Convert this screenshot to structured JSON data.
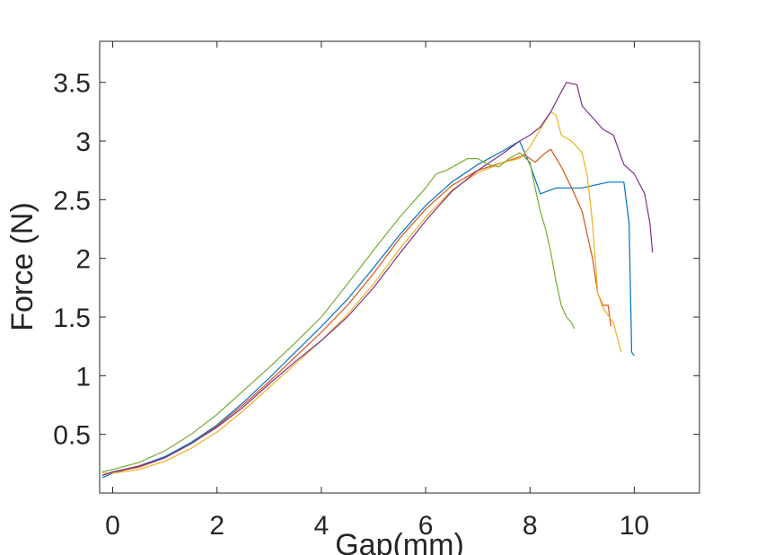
{
  "chart_data": {
    "type": "line",
    "xlabel": "Gap(mm)",
    "ylabel": "Force (N)",
    "xlim": [
      -0.25,
      11.25
    ],
    "ylim": [
      0.0,
      3.85
    ],
    "xticks": [
      0,
      2,
      4,
      6,
      8,
      10
    ],
    "xtick_labels": [
      "0",
      "2",
      "4",
      "6",
      "8",
      "10"
    ],
    "yticks": [
      0.5,
      1,
      1.5,
      2,
      2.5,
      3,
      3.5
    ],
    "ytick_labels": [
      "0.5",
      "1",
      "1.5",
      "2",
      "2.5",
      "3",
      "3.5"
    ],
    "grid": false,
    "series": [
      {
        "color": "#0072BD",
        "x": [
          -0.2,
          0,
          0.5,
          1,
          1.5,
          2,
          2.5,
          3,
          3.5,
          4,
          4.5,
          5,
          5.5,
          6,
          6.5,
          7,
          7.5,
          7.8,
          8.0,
          8.2,
          8.5,
          9.0,
          9.5,
          9.8,
          9.9,
          9.95,
          10.0
        ],
        "y": [
          0.13,
          0.17,
          0.23,
          0.31,
          0.43,
          0.58,
          0.77,
          0.98,
          1.2,
          1.42,
          1.65,
          1.92,
          2.2,
          2.45,
          2.65,
          2.8,
          2.92,
          3.0,
          2.8,
          2.55,
          2.6,
          2.6,
          2.65,
          2.65,
          2.3,
          1.2,
          1.17
        ]
      },
      {
        "color": "#D95319",
        "x": [
          -0.2,
          0,
          0.5,
          1,
          1.5,
          2,
          2.5,
          3,
          3.5,
          4,
          4.5,
          5,
          5.5,
          6,
          6.5,
          7,
          7.5,
          7.9,
          8.1,
          8.3,
          8.4,
          8.6,
          8.8,
          9.0,
          9.2,
          9.3,
          9.4,
          9.5,
          9.55
        ],
        "y": [
          0.15,
          0.18,
          0.22,
          0.3,
          0.42,
          0.57,
          0.75,
          0.95,
          1.16,
          1.37,
          1.6,
          1.87,
          2.17,
          2.42,
          2.62,
          2.75,
          2.82,
          2.88,
          2.82,
          2.9,
          2.93,
          2.78,
          2.6,
          2.4,
          2.0,
          1.7,
          1.6,
          1.6,
          1.42
        ]
      },
      {
        "color": "#EDB120",
        "x": [
          -0.2,
          0,
          0.5,
          1,
          1.5,
          2,
          2.5,
          3,
          3.5,
          4,
          4.5,
          5,
          5.5,
          6,
          6.5,
          7,
          7.5,
          7.8,
          8.0,
          8.2,
          8.4,
          8.5,
          8.6,
          8.8,
          9.0,
          9.1,
          9.2,
          9.3,
          9.4,
          9.6,
          9.75
        ],
        "y": [
          0.17,
          0.17,
          0.2,
          0.27,
          0.38,
          0.52,
          0.7,
          0.9,
          1.1,
          1.3,
          1.52,
          1.78,
          2.08,
          2.35,
          2.58,
          2.73,
          2.82,
          2.85,
          2.95,
          3.1,
          3.25,
          3.22,
          3.05,
          3.0,
          2.9,
          2.7,
          2.3,
          1.7,
          1.58,
          1.45,
          1.2
        ]
      },
      {
        "color": "#7E2F8E",
        "x": [
          -0.2,
          0,
          0.5,
          1,
          1.5,
          2,
          2.5,
          3,
          3.5,
          4,
          4.5,
          5,
          5.5,
          6,
          6.5,
          7,
          7.5,
          7.8,
          8.0,
          8.2,
          8.4,
          8.6,
          8.7,
          8.9,
          9.0,
          9.2,
          9.4,
          9.6,
          9.8,
          10.0,
          10.2,
          10.3,
          10.35
        ],
        "y": [
          0.15,
          0.18,
          0.23,
          0.3,
          0.42,
          0.56,
          0.73,
          0.93,
          1.12,
          1.3,
          1.5,
          1.75,
          2.04,
          2.32,
          2.57,
          2.75,
          2.9,
          3.0,
          3.05,
          3.12,
          3.25,
          3.42,
          3.5,
          3.48,
          3.3,
          3.2,
          3.1,
          3.05,
          2.8,
          2.72,
          2.55,
          2.3,
          2.05
        ]
      },
      {
        "color": "#77AC30",
        "x": [
          -0.2,
          0,
          0.5,
          1,
          1.5,
          2,
          2.5,
          3,
          3.5,
          4,
          4.5,
          5,
          5.5,
          6,
          6.2,
          6.4,
          6.6,
          6.8,
          7.0,
          7.2,
          7.4,
          7.6,
          7.8,
          8.0,
          8.1,
          8.2,
          8.3,
          8.4,
          8.5,
          8.6,
          8.7,
          8.8,
          8.85
        ],
        "y": [
          0.18,
          0.2,
          0.26,
          0.36,
          0.5,
          0.67,
          0.87,
          1.07,
          1.28,
          1.5,
          1.78,
          2.07,
          2.35,
          2.6,
          2.72,
          2.75,
          2.8,
          2.85,
          2.85,
          2.8,
          2.78,
          2.85,
          2.9,
          2.82,
          2.6,
          2.4,
          2.25,
          2.05,
          1.8,
          1.6,
          1.5,
          1.45,
          1.4
        ]
      }
    ]
  }
}
